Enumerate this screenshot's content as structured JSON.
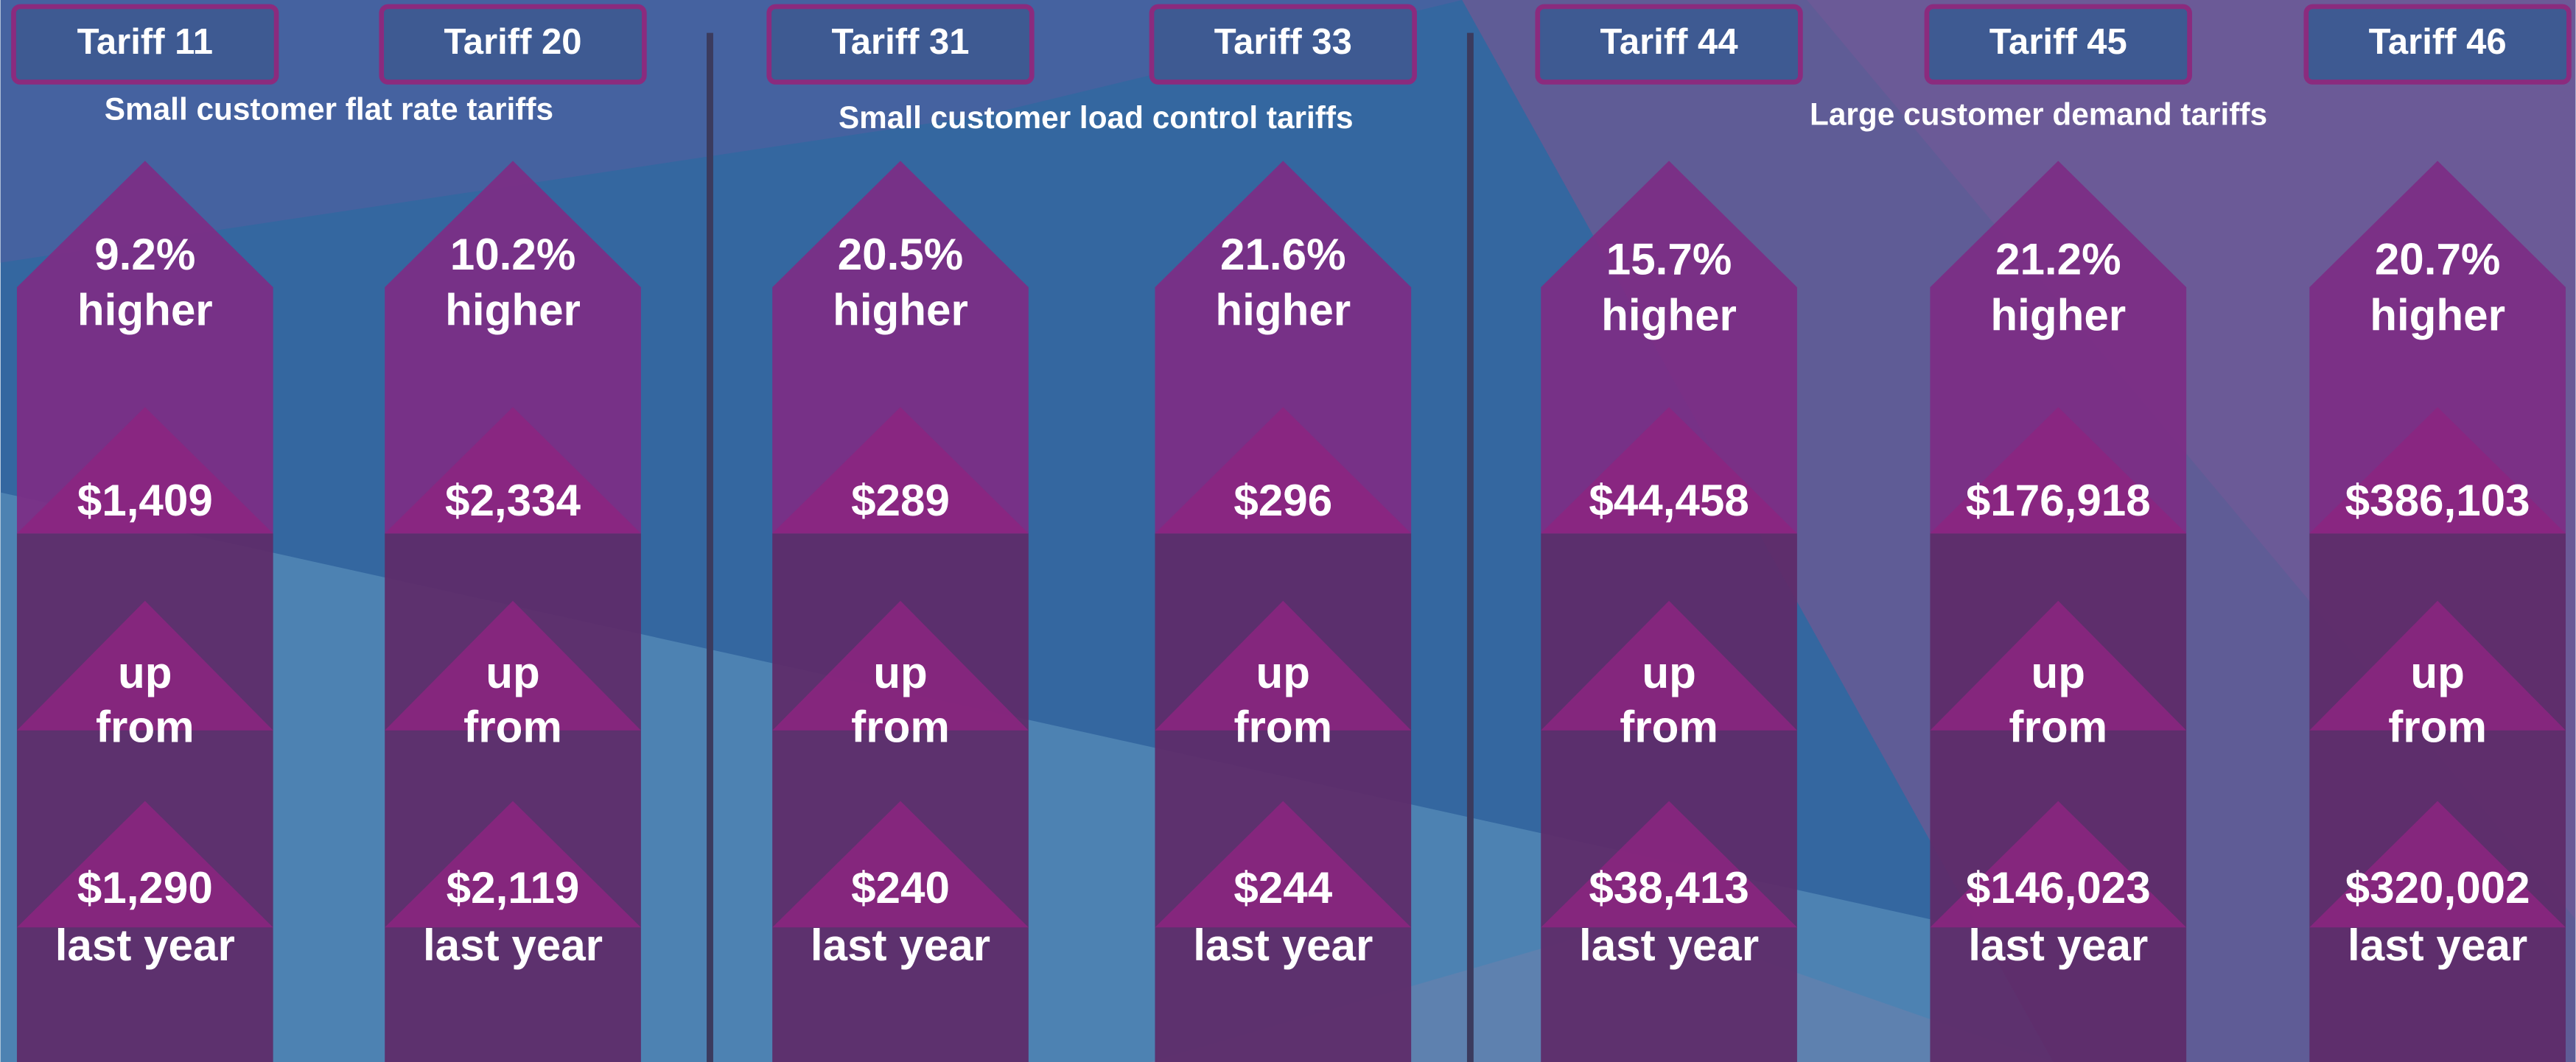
{
  "groups": [
    {
      "label": "Small customer flat rate tariffs",
      "tariffs": [
        {
          "name": "Tariff 11",
          "change": "9.2%",
          "direction": "higher",
          "bill": "$1,409",
          "link_top": "up",
          "link_bottom": "from",
          "previous": "$1,290",
          "previous_label": "last year"
        },
        {
          "name": "Tariff 20",
          "change": "10.2%",
          "direction": "higher",
          "bill": "$2,334",
          "link_top": "up",
          "link_bottom": "from",
          "previous": "$2,119",
          "previous_label": "last year"
        }
      ]
    },
    {
      "label": "Small customer load control tariffs",
      "tariffs": [
        {
          "name": "Tariff 31",
          "change": "20.5%",
          "direction": "higher",
          "bill": "$289",
          "link_top": "up",
          "link_bottom": "from",
          "previous": "$240",
          "previous_label": "last year"
        },
        {
          "name": "Tariff 33",
          "change": "21.6%",
          "direction": "higher",
          "bill": "$296",
          "link_top": "up",
          "link_bottom": "from",
          "previous": "$244",
          "previous_label": "last year"
        }
      ]
    },
    {
      "label": "Large customer demand tariffs",
      "tariffs": [
        {
          "name": "Tariff 44",
          "change": "15.7%",
          "direction": "higher",
          "bill": "$44,458",
          "link_top": "up",
          "link_bottom": "from",
          "previous": "$38,413",
          "previous_label": "last year"
        },
        {
          "name": "Tariff 45",
          "change": "21.2%",
          "direction": "higher",
          "bill": "$176,918",
          "link_top": "up",
          "link_bottom": "from",
          "previous": "$146,023",
          "previous_label": "last year"
        },
        {
          "name": "Tariff 46",
          "change": "20.7%",
          "direction": "higher",
          "bill": "$386,103",
          "link_top": "up",
          "link_bottom": "from",
          "previous": "$320,002",
          "previous_label": "last year"
        }
      ]
    }
  ]
}
